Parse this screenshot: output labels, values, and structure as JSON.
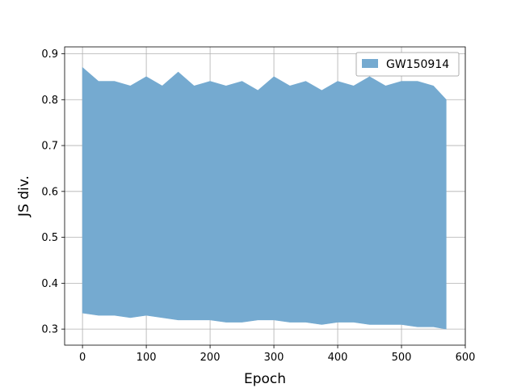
{
  "chart_data": {
    "type": "area",
    "title": "",
    "xlabel": "Epoch",
    "ylabel": "JS div.",
    "xlim": [
      -28,
      600
    ],
    "ylim": [
      0.265,
      0.915
    ],
    "xticks": [
      0,
      100,
      200,
      300,
      400,
      500,
      600
    ],
    "yticks": [
      0.3,
      0.4,
      0.5,
      0.6,
      0.7,
      0.8,
      0.9
    ],
    "grid": true,
    "legend_position": "top-right",
    "series": [
      {
        "name": "GW150914",
        "color": "#75aad0",
        "x": [
          0,
          25,
          50,
          75,
          100,
          125,
          150,
          175,
          200,
          225,
          250,
          275,
          300,
          325,
          350,
          375,
          400,
          425,
          450,
          475,
          500,
          525,
          550,
          570
        ],
        "upper": [
          0.87,
          0.84,
          0.84,
          0.83,
          0.85,
          0.83,
          0.86,
          0.83,
          0.84,
          0.83,
          0.84,
          0.82,
          0.85,
          0.83,
          0.84,
          0.82,
          0.84,
          0.83,
          0.85,
          0.83,
          0.84,
          0.84,
          0.83,
          0.8
        ],
        "lower": [
          0.335,
          0.33,
          0.33,
          0.325,
          0.33,
          0.325,
          0.32,
          0.32,
          0.32,
          0.315,
          0.315,
          0.32,
          0.32,
          0.315,
          0.315,
          0.31,
          0.315,
          0.315,
          0.31,
          0.31,
          0.31,
          0.305,
          0.305,
          0.3
        ]
      }
    ]
  }
}
